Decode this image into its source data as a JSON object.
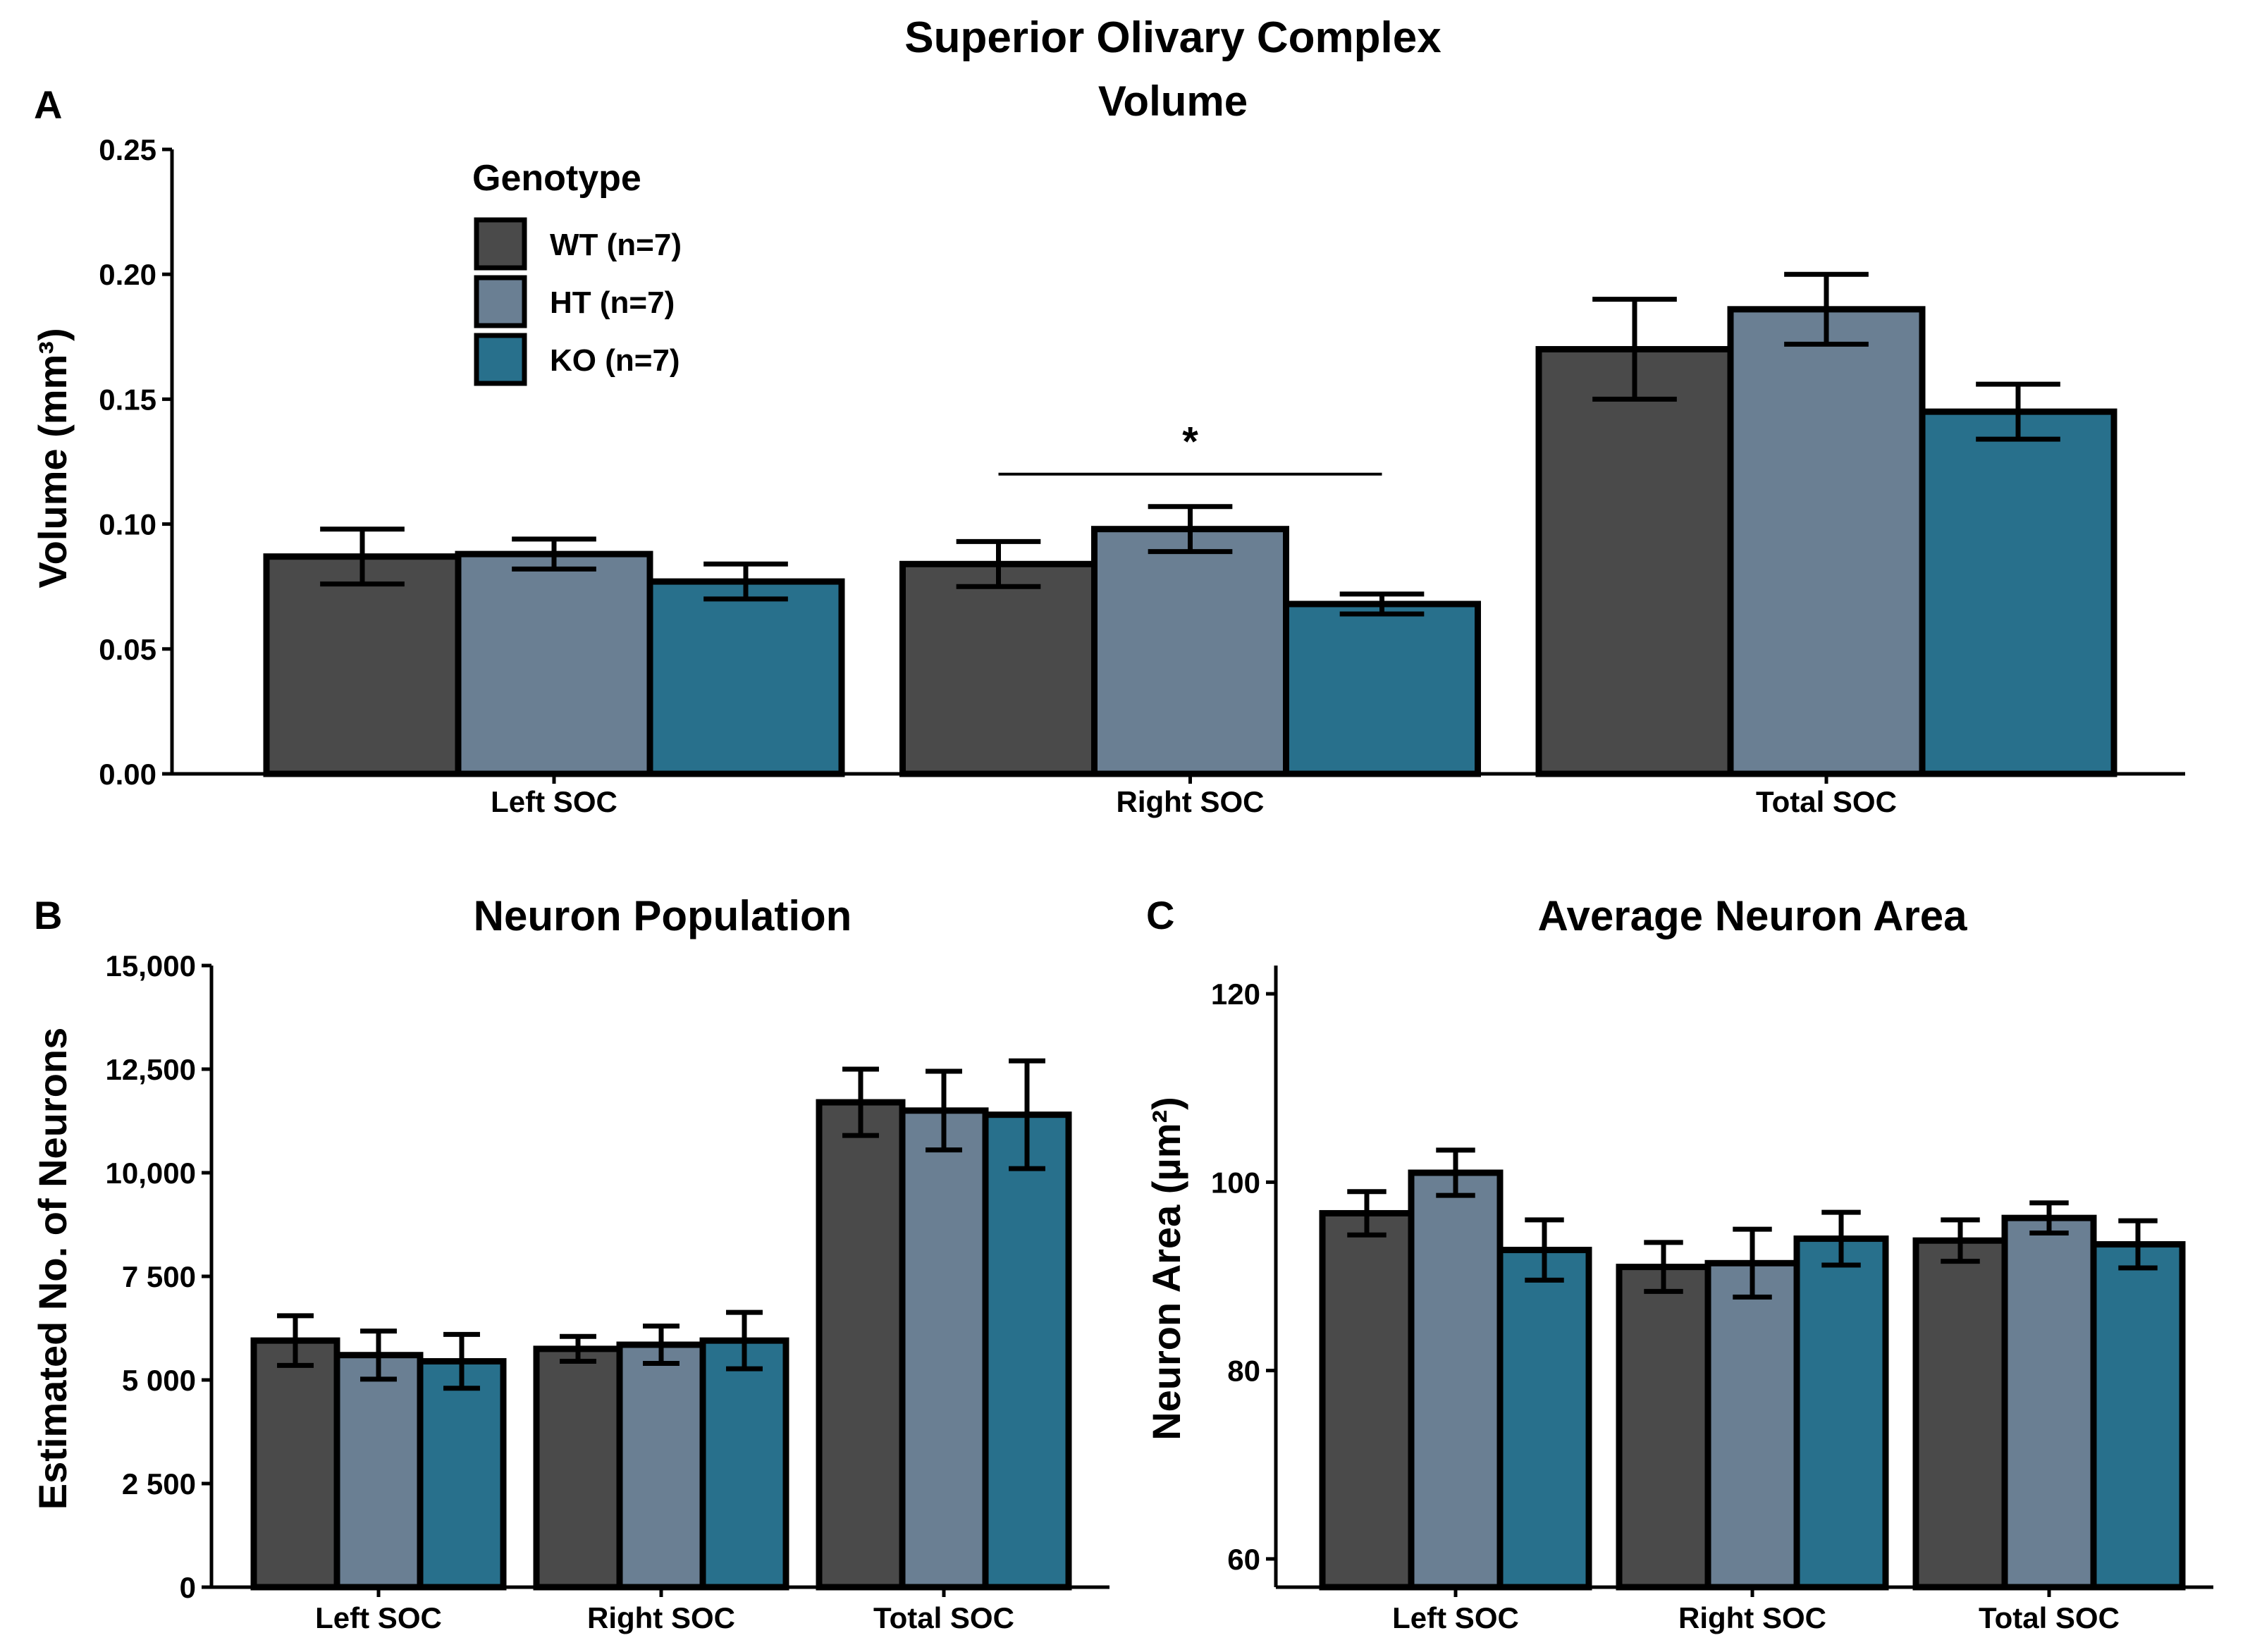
{
  "figure": {
    "title": "Superior Olivary Complex",
    "colors": {
      "WT": "#4a4a4a",
      "HT": "#6a7f93",
      "KO": "#28708c"
    }
  },
  "legend": {
    "title": "Genotype",
    "items": [
      {
        "key": "WT",
        "label": "WT (n=7)"
      },
      {
        "key": "HT",
        "label": "HT (n=7)"
      },
      {
        "key": "KO",
        "label": "KO (n=7)"
      }
    ]
  },
  "chart_data": [
    {
      "panel": "A",
      "type": "bar",
      "title": "Volume",
      "xlabel": "",
      "ylabel": "Volume (mm³)",
      "ylim": [
        0,
        0.25
      ],
      "yticks": [
        0,
        0.05,
        0.1,
        0.15,
        0.2,
        0.25
      ],
      "ytick_labels": [
        "0.00",
        "0.05",
        "0.10",
        "0.15",
        "0.20",
        "0.25"
      ],
      "categories": [
        "Left SOC",
        "Right SOC",
        "Total SOC"
      ],
      "series": [
        {
          "name": "WT (n=7)",
          "key": "WT",
          "values": [
            0.087,
            0.084,
            0.17
          ],
          "errors": [
            0.011,
            0.009,
            0.02
          ]
        },
        {
          "name": "HT (n=7)",
          "key": "HT",
          "values": [
            0.088,
            0.098,
            0.186
          ],
          "errors": [
            0.006,
            0.009,
            0.014
          ]
        },
        {
          "name": "KO (n=7)",
          "key": "KO",
          "values": [
            0.077,
            0.068,
            0.145
          ],
          "errors": [
            0.007,
            0.004,
            0.011
          ]
        }
      ],
      "annotations": [
        {
          "text": "*",
          "category": "Right SOC",
          "from_series": "WT",
          "to_series": "KO",
          "y": 0.12
        }
      ]
    },
    {
      "panel": "B",
      "type": "bar",
      "title": "Neuron Population",
      "xlabel": "",
      "ylabel": "Estimated No. of Neurons",
      "ylim": [
        0,
        15000
      ],
      "yticks": [
        0,
        2500,
        5000,
        7500,
        10000,
        12500,
        15000
      ],
      "ytick_labels": [
        "0",
        "2 500",
        "5 000",
        "7 500",
        "10,000",
        "12,500",
        "15,000"
      ],
      "categories": [
        "Left SOC",
        "Right SOC",
        "Total SOC"
      ],
      "series": [
        {
          "name": "WT (n=7)",
          "key": "WT",
          "values": [
            5950,
            5750,
            11700
          ],
          "errors": [
            600,
            300,
            800
          ]
        },
        {
          "name": "HT (n=7)",
          "key": "HT",
          "values": [
            5600,
            5850,
            11500
          ],
          "errors": [
            580,
            450,
            950
          ]
        },
        {
          "name": "KO (n=7)",
          "key": "KO",
          "values": [
            5450,
            5950,
            11400
          ],
          "errors": [
            650,
            680,
            1300
          ]
        }
      ]
    },
    {
      "panel": "C",
      "type": "bar",
      "title": "Average Neuron Area",
      "xlabel": "",
      "ylabel": "Neuron Area (µm²)",
      "ylim": [
        57,
        123
      ],
      "yticks": [
        60,
        80,
        100,
        120
      ],
      "ytick_labels": [
        "60",
        "80",
        "100",
        "120"
      ],
      "categories": [
        "Left SOC",
        "Right SOC",
        "Total SOC"
      ],
      "series": [
        {
          "name": "WT (n=7)",
          "key": "WT",
          "values": [
            96.7,
            91.0,
            93.8
          ],
          "errors": [
            2.3,
            2.6,
            2.2
          ]
        },
        {
          "name": "HT (n=7)",
          "key": "HT",
          "values": [
            101.0,
            91.4,
            96.2
          ],
          "errors": [
            2.4,
            3.6,
            1.6
          ]
        },
        {
          "name": "KO (n=7)",
          "key": "KO",
          "values": [
            92.8,
            94.0,
            93.4
          ],
          "errors": [
            3.2,
            2.8,
            2.5
          ]
        }
      ]
    }
  ]
}
